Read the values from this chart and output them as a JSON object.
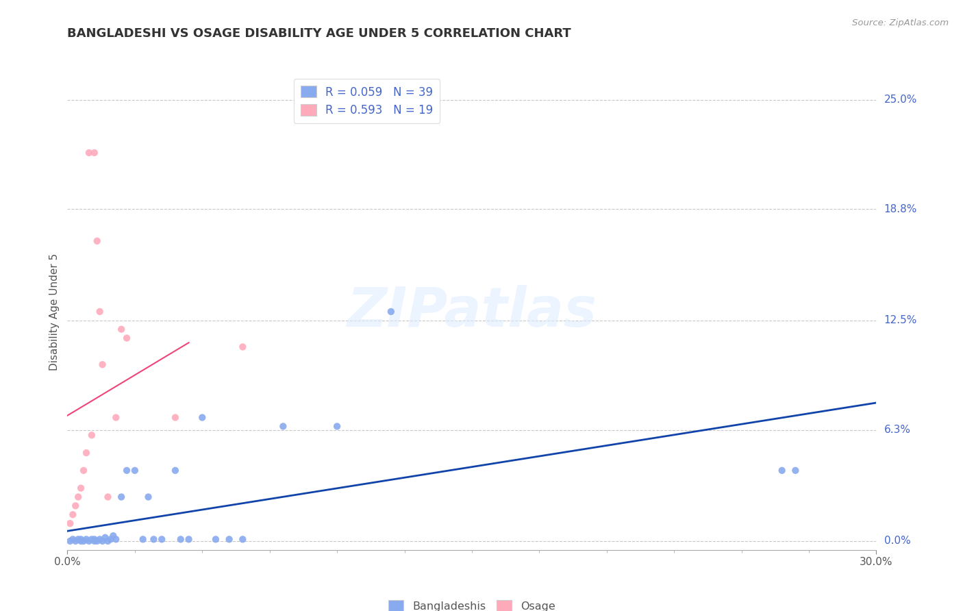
{
  "title": "BANGLADESHI VS OSAGE DISABILITY AGE UNDER 5 CORRELATION CHART",
  "source": "Source: ZipAtlas.com",
  "ylabel": "Disability Age Under 5",
  "watermark": "ZIPatlas",
  "xlim": [
    0.0,
    0.3
  ],
  "ylim": [
    -0.005,
    0.265
  ],
  "ytick_labels": [
    "0.0%",
    "6.3%",
    "12.5%",
    "18.8%",
    "25.0%"
  ],
  "ytick_values": [
    0.0,
    0.063,
    0.125,
    0.188,
    0.25
  ],
  "grid_color": "#c8c8c8",
  "blue_color": "#88aaee",
  "pink_color": "#ffaabb",
  "blue_line_color": "#1144aa",
  "pink_line_color": "#ee4477",
  "title_color": "#333333",
  "label_color": "#4466cc",
  "R_blue": 0.059,
  "N_blue": 39,
  "R_pink": 0.593,
  "N_pink": 19,
  "bangladeshi_x": [
    0.001,
    0.002,
    0.003,
    0.004,
    0.005,
    0.005,
    0.006,
    0.007,
    0.008,
    0.009,
    0.01,
    0.01,
    0.011,
    0.012,
    0.013,
    0.014,
    0.015,
    0.016,
    0.017,
    0.018,
    0.02,
    0.022,
    0.025,
    0.028,
    0.03,
    0.032,
    0.035,
    0.04,
    0.042,
    0.045,
    0.05,
    0.055,
    0.06,
    0.065,
    0.08,
    0.1,
    0.12,
    0.265,
    0.27
  ],
  "bangladeshi_y": [
    0.0,
    0.001,
    0.0,
    0.001,
    0.0,
    0.001,
    0.0,
    0.001,
    0.0,
    0.001,
    0.0,
    0.001,
    0.0,
    0.001,
    0.0,
    0.002,
    0.0,
    0.001,
    0.003,
    0.001,
    0.025,
    0.04,
    0.04,
    0.001,
    0.025,
    0.001,
    0.001,
    0.04,
    0.001,
    0.001,
    0.07,
    0.001,
    0.001,
    0.001,
    0.065,
    0.065,
    0.13,
    0.04,
    0.04
  ],
  "osage_x": [
    0.001,
    0.002,
    0.003,
    0.004,
    0.005,
    0.006,
    0.007,
    0.008,
    0.009,
    0.01,
    0.011,
    0.012,
    0.013,
    0.015,
    0.018,
    0.02,
    0.022,
    0.04,
    0.065
  ],
  "osage_y": [
    0.01,
    0.015,
    0.02,
    0.025,
    0.03,
    0.04,
    0.05,
    0.22,
    0.06,
    0.22,
    0.17,
    0.13,
    0.1,
    0.025,
    0.07,
    0.12,
    0.115,
    0.07,
    0.11
  ]
}
